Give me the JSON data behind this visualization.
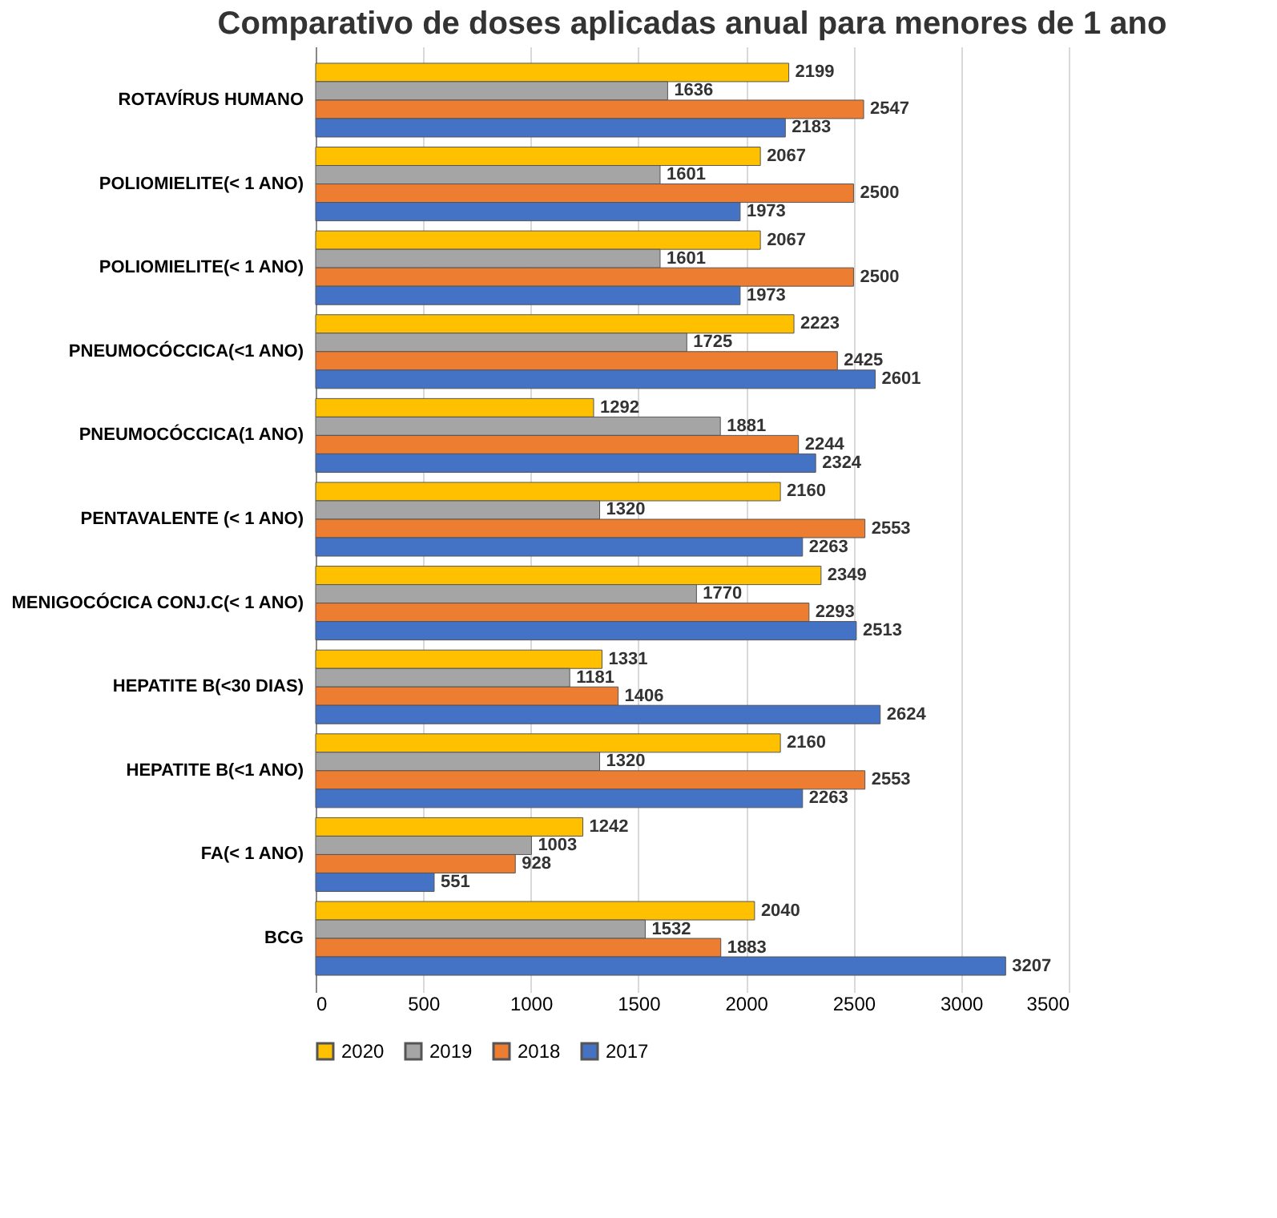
{
  "chart_data": {
    "type": "bar",
    "orientation": "horizontal",
    "title": "Comparativo de doses aplicadas anual para menores de 1 ano",
    "categories": [
      "ROTAVÍRUS HUMANO",
      "POLIOMIELITE(< 1 ANO)",
      "POLIOMIELITE(< 1 ANO)",
      "PNEUMOCÓCCICA(<1 ANO)",
      "PNEUMOCÓCCICA(1 ANO)",
      "PENTAVALENTE (< 1 ANO)",
      "MENIGOCÓCICA CONJ.C(< 1 ANO)",
      "HEPATITE B(<30 DIAS)",
      "HEPATITE B(<1 ANO)",
      "FA(< 1 ANO)",
      "BCG"
    ],
    "series": [
      {
        "name": "2020",
        "color": "#ffc000",
        "values": [
          2199,
          2067,
          2067,
          2223,
          1292,
          2160,
          2349,
          1331,
          2160,
          1242,
          2040
        ]
      },
      {
        "name": "2019",
        "color": "#a5a5a5",
        "values": [
          1636,
          1601,
          1601,
          1725,
          1881,
          1320,
          1770,
          1181,
          1320,
          1003,
          1532
        ]
      },
      {
        "name": "2018",
        "color": "#ed7d31",
        "values": [
          2547,
          2500,
          2500,
          2425,
          2244,
          2553,
          2293,
          1406,
          2553,
          928,
          1883
        ]
      },
      {
        "name": "2017",
        "color": "#4472c4",
        "values": [
          2183,
          1973,
          1973,
          2601,
          2324,
          2263,
          2513,
          2624,
          2263,
          551,
          3207
        ]
      }
    ],
    "xlim": [
      0,
      3500
    ],
    "xticks": [
      0,
      500,
      1000,
      1500,
      2000,
      2500,
      3000,
      3500
    ],
    "grid": "x",
    "legend": "bottom",
    "data_labels": true
  }
}
